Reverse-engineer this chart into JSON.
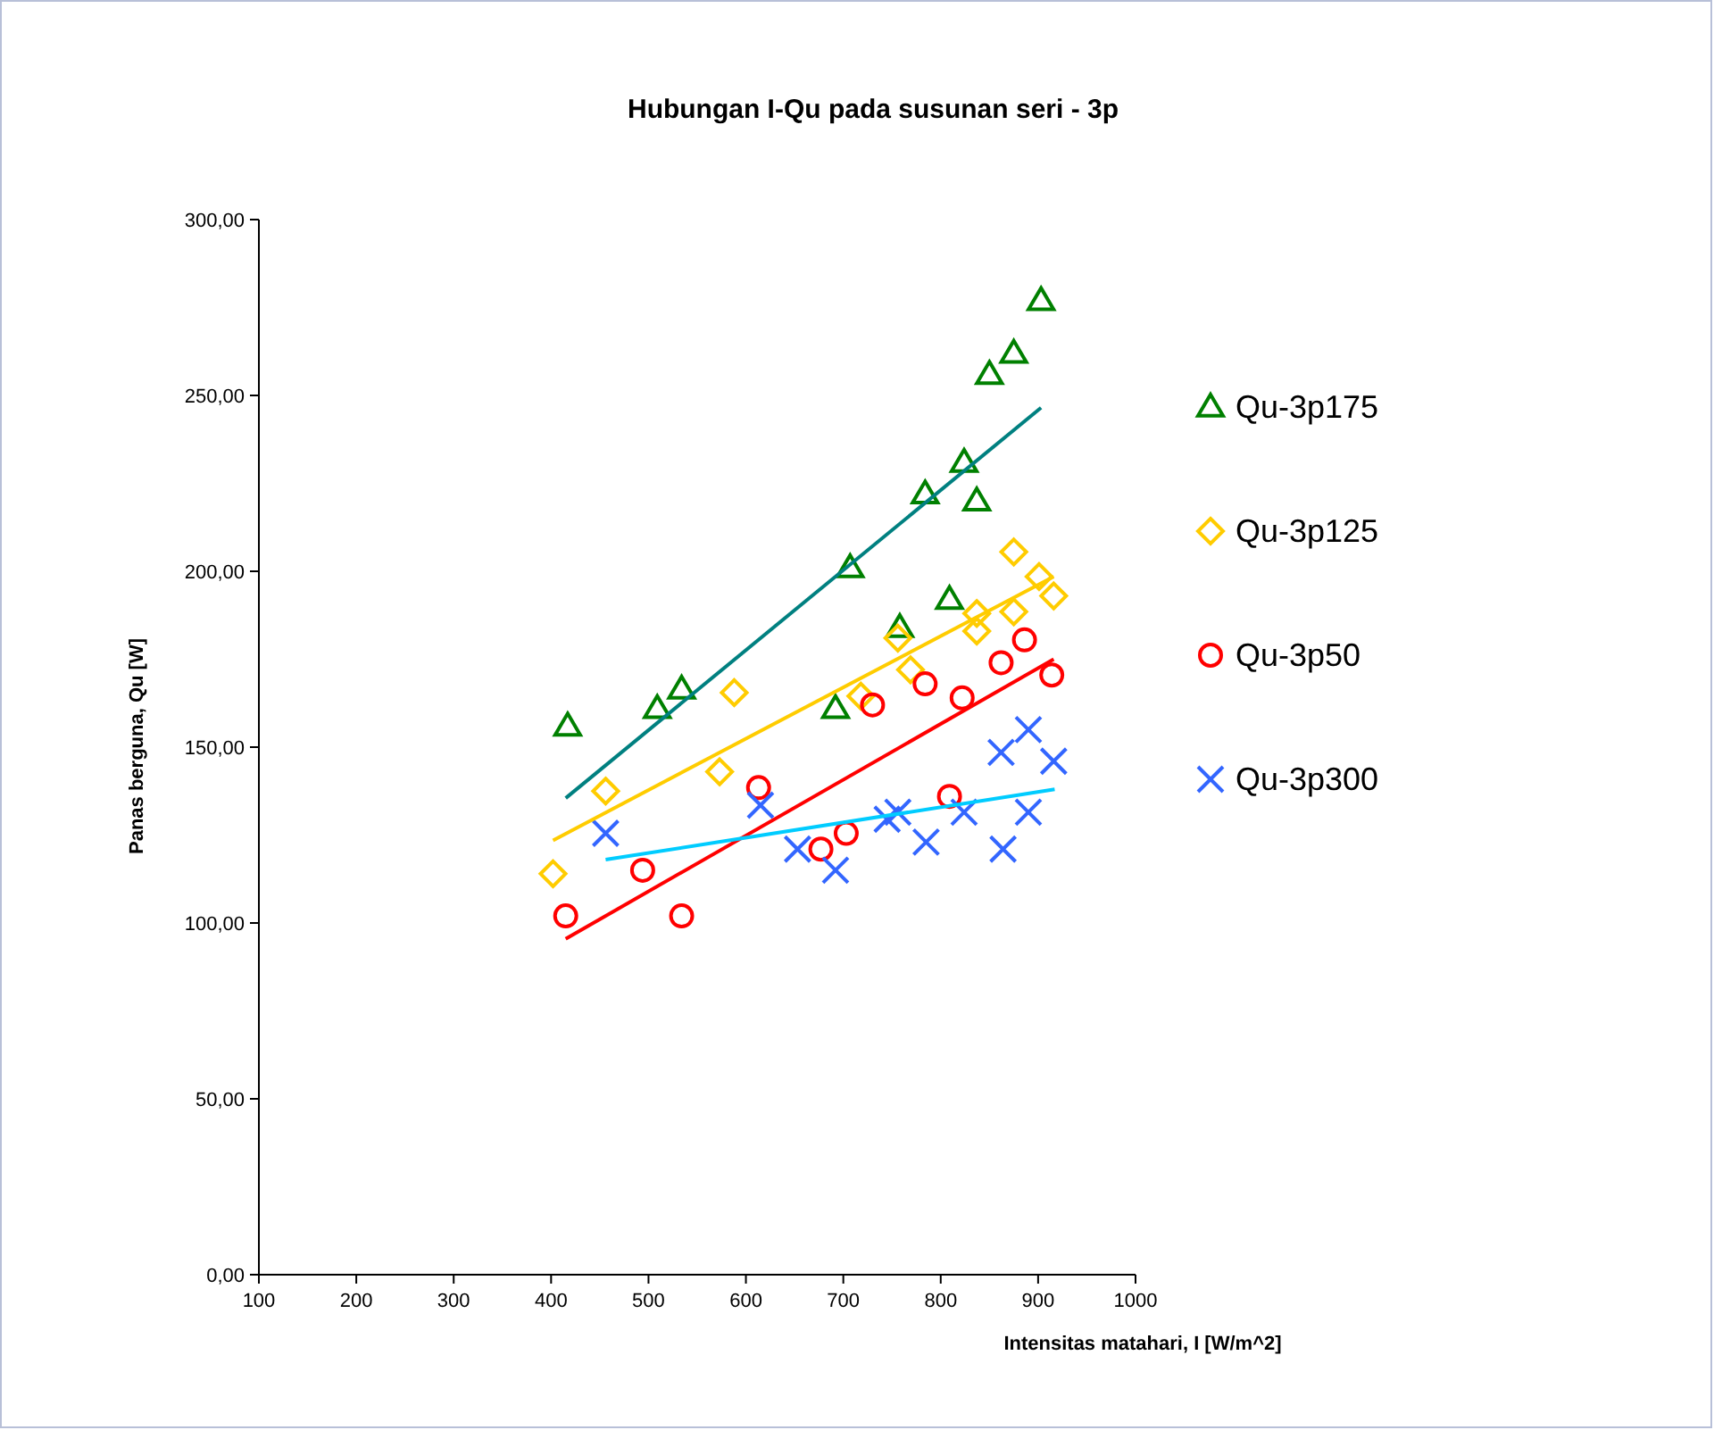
{
  "chart_data": {
    "type": "scatter",
    "title": "Hubungan I-Qu pada susunan seri - 3p",
    "xlabel": "Intensitas matahari, I [W/m^2]",
    "ylabel": "Panas berguna, Qu [W]",
    "xlim": [
      100,
      1000
    ],
    "xticks": [
      100,
      200,
      300,
      400,
      500,
      600,
      700,
      800,
      900,
      1000
    ],
    "ylim": [
      0,
      300
    ],
    "yticks": [
      {
        "value": 0,
        "label": "0,00"
      },
      {
        "value": 50,
        "label": "50,00"
      },
      {
        "value": 100,
        "label": "100,00"
      },
      {
        "value": 150,
        "label": "150,00"
      },
      {
        "value": 200,
        "label": "200,00"
      },
      {
        "value": 250,
        "label": "250,00"
      },
      {
        "value": 300,
        "label": "300,00"
      }
    ],
    "grid": false,
    "legend": "right",
    "series": [
      {
        "name": "Qu-3p175",
        "color": "#008000",
        "marker": "triangle",
        "x": [
          417,
          509,
          534,
          692,
          707,
          758,
          784,
          824,
          837,
          809,
          850,
          875,
          903
        ],
        "values": [
          156,
          161,
          166.5,
          161,
          201,
          184,
          222,
          231,
          220,
          192,
          256,
          262,
          277
        ]
      },
      {
        "name": "Qu-3p125",
        "color": "#ffcc00",
        "marker": "diamond",
        "x": [
          402,
          456,
          573,
          588,
          718,
          756,
          769,
          837,
          837,
          875,
          875,
          901,
          916
        ],
        "values": [
          114,
          137.5,
          143,
          165.5,
          164.5,
          181,
          172,
          188,
          183,
          205.5,
          188.5,
          198.5,
          193
        ]
      },
      {
        "name": "Qu-3p50",
        "color": "#ff0000",
        "marker": "circle",
        "x": [
          415,
          494,
          534,
          613,
          677,
          703,
          730,
          784,
          822,
          809,
          862,
          886,
          914
        ],
        "values": [
          102,
          115,
          102,
          138.5,
          121,
          125.5,
          162,
          168,
          164,
          136,
          174,
          180.5,
          170.5
        ]
      },
      {
        "name": "Qu-3p300",
        "color": "#3366ff",
        "marker": "cross",
        "x": [
          456,
          615,
          653,
          692,
          745,
          756,
          785,
          824,
          864,
          862,
          890,
          890,
          916
        ],
        "values": [
          125.5,
          133.5,
          121,
          115,
          129.5,
          131.5,
          123,
          131.5,
          121,
          148.5,
          155,
          131.5,
          146
        ]
      },
      {
        "type": "line",
        "color": "#008080",
        "marker": "none",
        "x": [
          415,
          903
        ],
        "values": [
          135.5,
          246.5
        ]
      },
      {
        "type": "line",
        "color": "#ffcc00",
        "marker": "none",
        "x": [
          402,
          916
        ],
        "values": [
          123.5,
          198.5
        ]
      },
      {
        "type": "line",
        "color": "#ff0000",
        "marker": "none",
        "x": [
          415,
          916
        ],
        "values": [
          95.5,
          175
        ]
      },
      {
        "type": "line",
        "color": "#00ccff",
        "marker": "none",
        "x": [
          456,
          917
        ],
        "values": [
          118,
          138
        ]
      }
    ]
  }
}
